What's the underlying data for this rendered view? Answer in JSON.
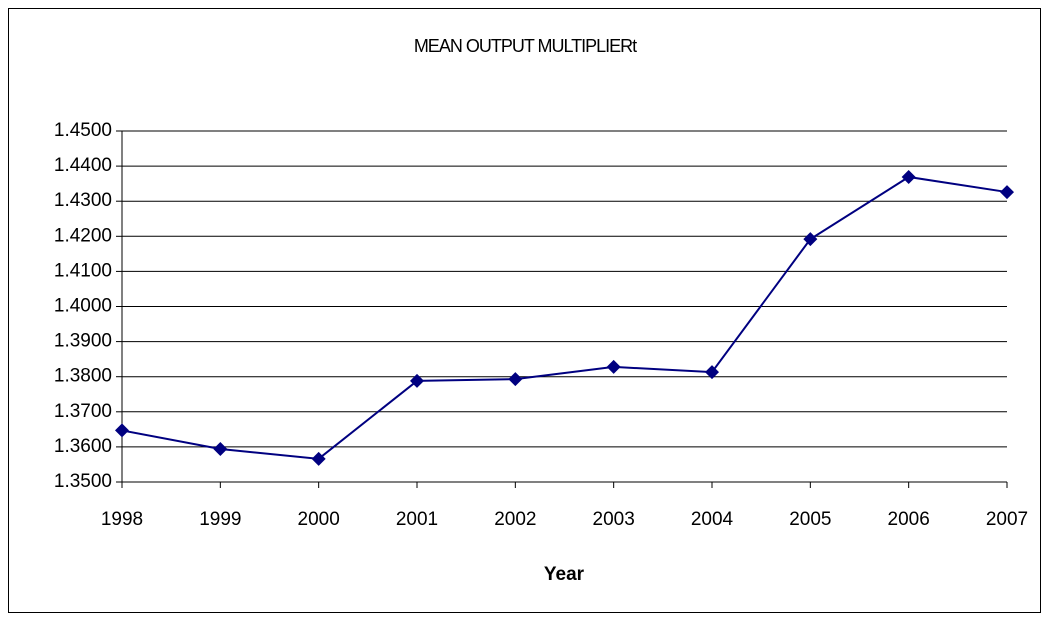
{
  "chart_data": {
    "type": "line",
    "title": "MEAN OUTPUT MULTIPLIERt",
    "x_label": "Year",
    "x": [
      1998,
      1999,
      2000,
      2001,
      2002,
      2003,
      2004,
      2005,
      2006,
      2007
    ],
    "xlim": [
      1998,
      2007
    ],
    "xticks": [
      1998,
      1999,
      2000,
      2001,
      2002,
      2003,
      2004,
      2005,
      2006,
      2007
    ],
    "series": [
      {
        "color": "#000080",
        "values": [
          1.3647,
          1.3594,
          1.3566,
          1.3788,
          1.3793,
          1.3828,
          1.3813,
          1.4192,
          1.4369,
          1.4326
        ]
      }
    ],
    "ylim": [
      1.35,
      1.45
    ],
    "yticks": [
      {
        "value": 1.35,
        "label": "1.3500"
      },
      {
        "value": 1.36,
        "label": "1.3600"
      },
      {
        "value": 1.37,
        "label": "1.3700"
      },
      {
        "value": 1.38,
        "label": "1.3800"
      },
      {
        "value": 1.39,
        "label": "1.3900"
      },
      {
        "value": 1.4,
        "label": "1.4000"
      },
      {
        "value": 1.41,
        "label": "1.4100"
      },
      {
        "value": 1.42,
        "label": "1.4200"
      },
      {
        "value": 1.43,
        "label": "1.4300"
      },
      {
        "value": 1.44,
        "label": "1.4400"
      },
      {
        "value": 1.45,
        "label": "1.4500"
      }
    ],
    "grid": true
  }
}
